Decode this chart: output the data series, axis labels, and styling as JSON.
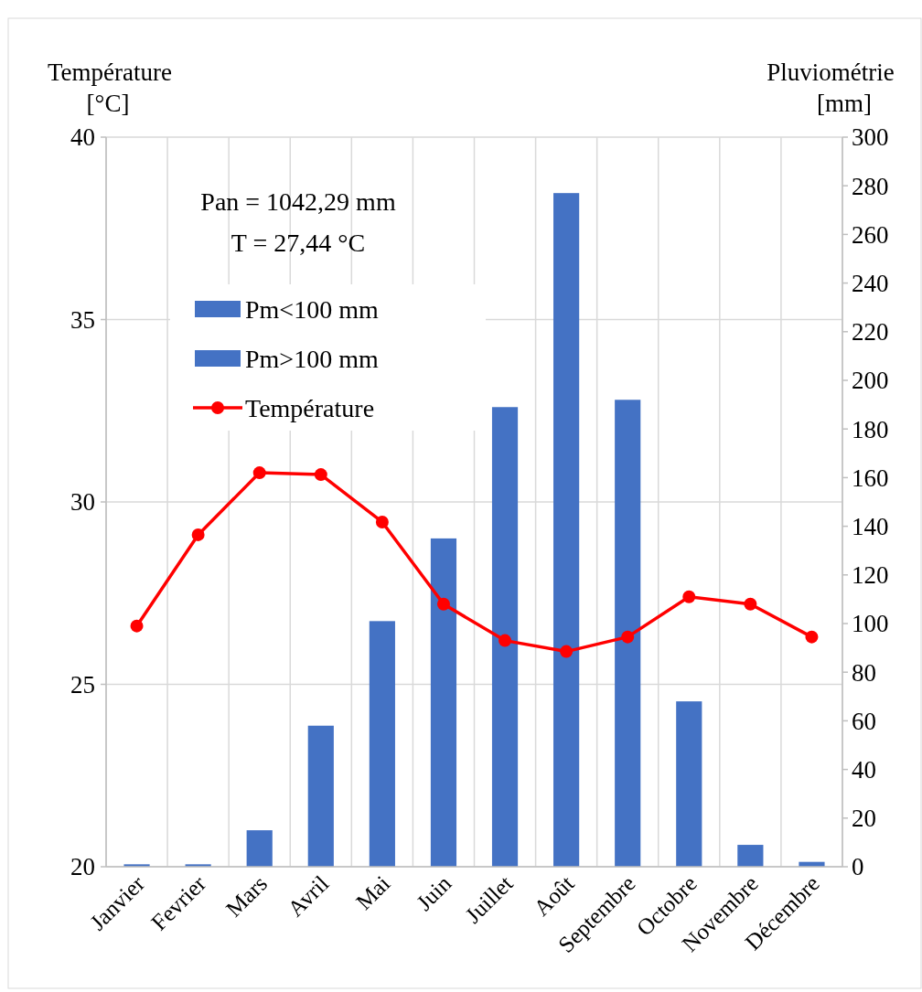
{
  "chart_data": {
    "type": "bar",
    "categories": [
      "Janvier",
      "Fevrier",
      "Mars",
      "Avril",
      "Mai",
      "Juin",
      "Juillet",
      "Août",
      "Septembre",
      "Octobre",
      "Novembre",
      "Décembre"
    ],
    "series": [
      {
        "name": "Pm<100 mm",
        "color": "#4472c4",
        "axis": "y2",
        "values": [
          1,
          1,
          15,
          58,
          null,
          null,
          null,
          null,
          null,
          68,
          9,
          2
        ]
      },
      {
        "name": "Pm>100 mm",
        "color": "#4472c4",
        "axis": "y2",
        "values": [
          null,
          null,
          null,
          null,
          101,
          135,
          189,
          277,
          192,
          null,
          null,
          null
        ]
      },
      {
        "name": "Température",
        "type": "line",
        "color": "#ff0000",
        "values": [
          26.6,
          29.1,
          30.8,
          30.75,
          29.45,
          27.2,
          26.2,
          25.9,
          26.3,
          27.4,
          27.2,
          26.3
        ]
      }
    ],
    "ylabel": "Température [°C]",
    "y2label": "Pluviométrie [mm]",
    "ylim": [
      20,
      40
    ],
    "yticks": [
      20,
      25,
      30,
      35,
      40
    ],
    "y2lim": [
      0,
      300
    ],
    "y2ticks": [
      0,
      20,
      40,
      60,
      80,
      100,
      120,
      140,
      160,
      180,
      200,
      220,
      240,
      260,
      280,
      300
    ],
    "annotations": [
      "Pan = 1042,29 mm",
      "T = 27,44 °C"
    ],
    "grid": true,
    "legend": "top left",
    "marker": "circle",
    "line_style": "solid"
  }
}
